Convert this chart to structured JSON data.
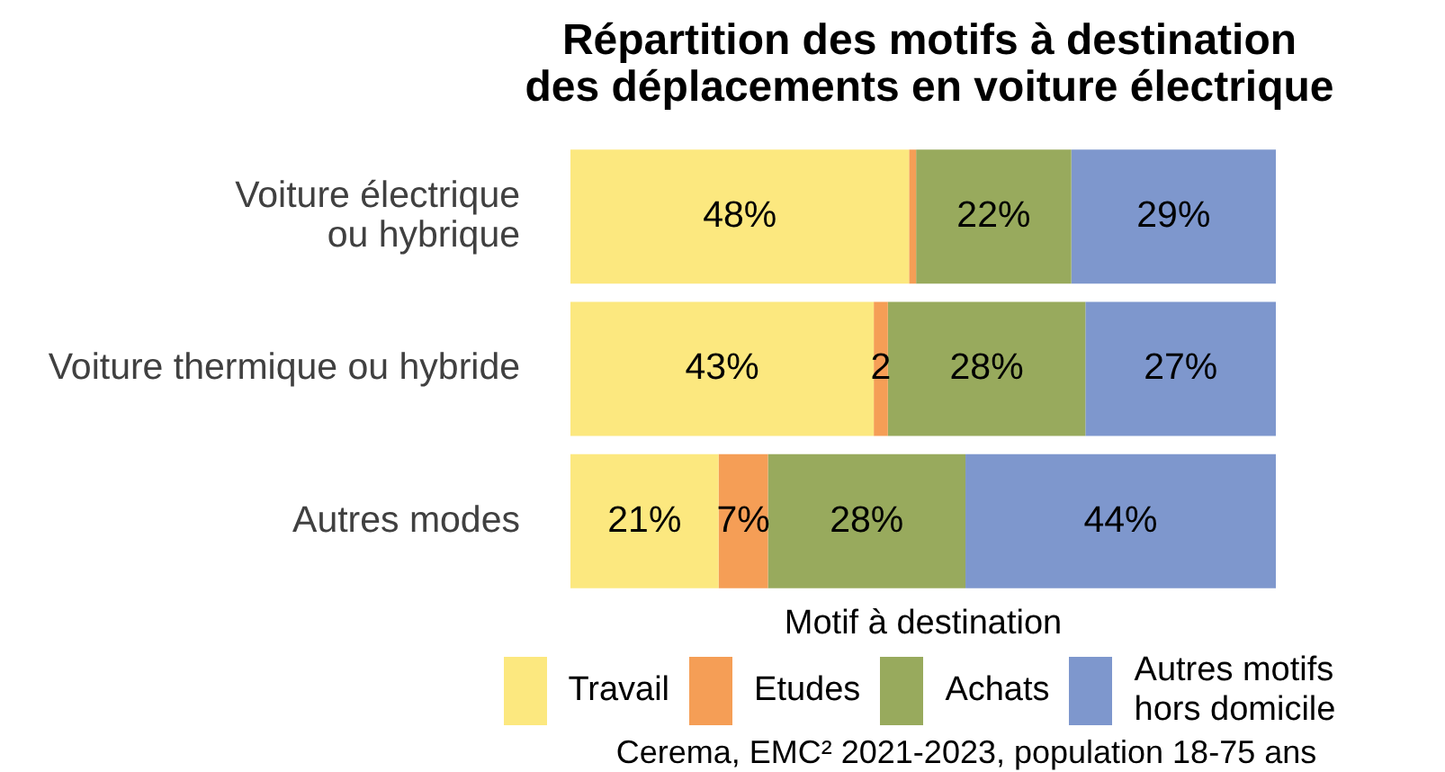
{
  "chart_data": {
    "type": "bar",
    "orientation": "horizontal",
    "stacked": true,
    "title": "Répartition des motifs à destination des déplacements en voiture électrique",
    "categories": [
      "Voiture électrique ou hybrique",
      "Voiture thermique ou hybride",
      "Autres modes"
    ],
    "series": [
      {
        "name": "Travail",
        "color": "#fce87f",
        "values": [
          48,
          43,
          21
        ],
        "value_labels": [
          "48%",
          "43%",
          "21%"
        ]
      },
      {
        "name": "Etudes",
        "color": "#f59e56",
        "values": [
          1,
          2,
          7
        ],
        "value_labels": [
          null,
          "2",
          "7%"
        ]
      },
      {
        "name": "Achats",
        "color": "#98aa5d",
        "values": [
          22,
          28,
          28
        ],
        "value_labels": [
          "22%",
          "28%",
          "28%"
        ]
      },
      {
        "name": "Autres motifs hors domicile",
        "color": "#7e97cd",
        "values": [
          29,
          27,
          44
        ],
        "value_labels": [
          "29%",
          "27%",
          "44%"
        ]
      }
    ],
    "xlim": [
      0,
      100
    ],
    "tick_labels": "y",
    "legend": "bottom",
    "legend_title": "Motif à destination",
    "annotations": [
      "Cerema, EMC² 2021-2023, population 18-75 ans"
    ]
  }
}
